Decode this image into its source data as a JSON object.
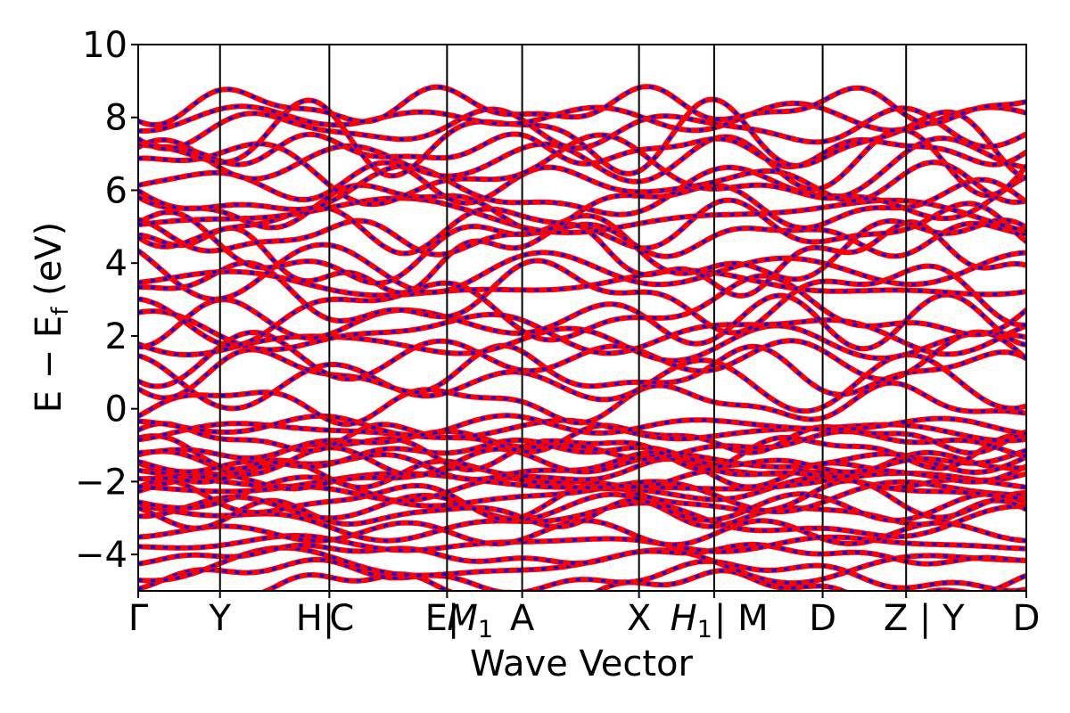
{
  "chart_data": {
    "type": "line",
    "title": "",
    "xlabel": "Wave Vector",
    "ylabel": "E − E",
    "ylabel_sub": "f",
    "ylabel_unit": " (eV)",
    "ylim": [
      -5,
      10
    ],
    "yticks": [
      10,
      8,
      6,
      4,
      2,
      0,
      -2,
      -4
    ],
    "ytick_labels": [
      "10",
      "8",
      "6",
      "4",
      "2",
      "0",
      "−2",
      "−4"
    ],
    "xlim": [
      0,
      10.64
    ],
    "kpoints": [
      {
        "label": "Γ",
        "x": 0.0
      },
      {
        "label": "Y",
        "x": 0.98
      },
      {
        "label": "H|",
        "x": 2.29
      },
      {
        "label": "C",
        "x": 2.29
      },
      {
        "label": "E|",
        "x": 3.7
      },
      {
        "label": "M",
        "x": 3.7,
        "sub": "1"
      },
      {
        "label": "A",
        "x": 4.6
      },
      {
        "label": "X",
        "x": 6.0
      },
      {
        "label": "H",
        "x": 6.9,
        "sub": "1"
      },
      {
        "label": "| M",
        "x": 6.9
      },
      {
        "label": "D",
        "x": 8.2
      },
      {
        "label": "Z | Y",
        "x": 9.2
      },
      {
        "label": "D",
        "x": 10.64
      }
    ],
    "series": [
      {
        "color": "#ff0000",
        "style": "solid"
      },
      {
        "color": "#0000ff",
        "style": "dashed"
      }
    ],
    "grid": false,
    "legend": "none"
  }
}
